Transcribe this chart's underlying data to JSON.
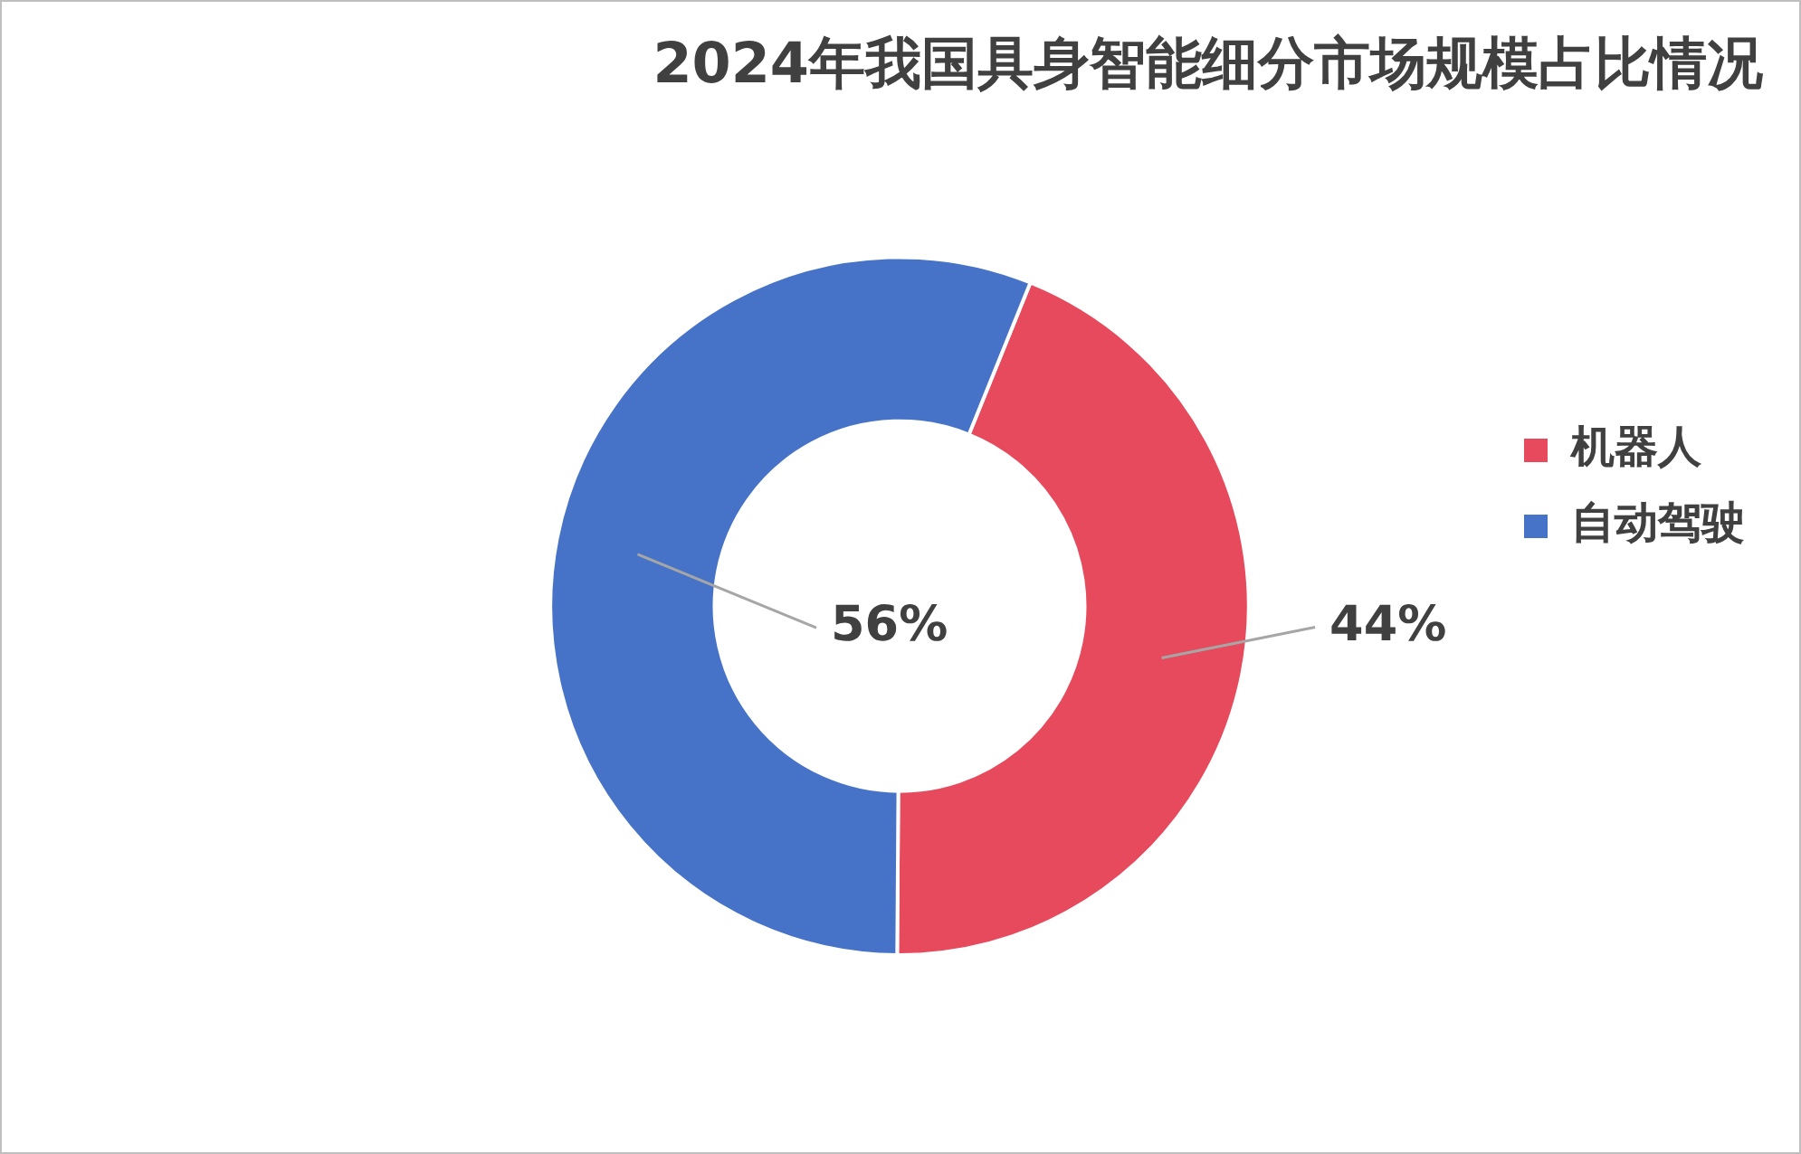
{
  "chart_data": {
    "type": "donut",
    "title": "2024年我国具身智能细分市场规模占比情况",
    "categories": [
      "机器人",
      "自动驾驶"
    ],
    "values": [
      44,
      56
    ],
    "colors": [
      "#e64a5c",
      "#4673c8"
    ],
    "value_labels": [
      "44%",
      "56%"
    ],
    "legend": "right"
  }
}
